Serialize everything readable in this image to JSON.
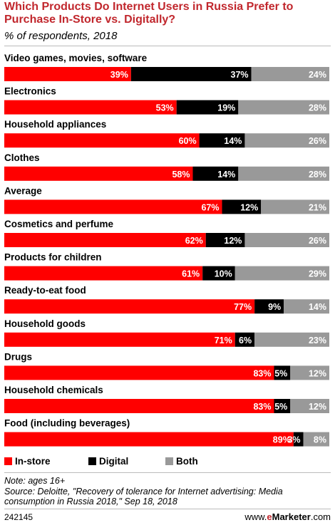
{
  "header": {
    "title": "Which Products Do Internet Users in Russia Prefer to Purchase In-Store vs. Digitally?",
    "subtitle": "% of respondents, 2018"
  },
  "colors": {
    "in_store": "#FF0000",
    "digital": "#000000",
    "both": "#999999"
  },
  "chart_data": {
    "type": "bar",
    "stacked": true,
    "orientation": "horizontal",
    "categories": [
      "Video games, movies, software",
      "Electronics",
      "Household appliances",
      "Clothes",
      "Average",
      "Cosmetics and perfume",
      "Products for children",
      "Ready-to-eat food",
      "Household goods",
      "Drugs",
      "Household chemicals",
      "Food (including beverages)"
    ],
    "series": [
      {
        "name": "In-store",
        "values": [
          39,
          53,
          60,
          58,
          67,
          62,
          61,
          77,
          71,
          83,
          83,
          89
        ]
      },
      {
        "name": "Digital",
        "values": [
          37,
          19,
          14,
          14,
          12,
          12,
          10,
          9,
          6,
          5,
          5,
          3
        ]
      },
      {
        "name": "Both",
        "values": [
          24,
          28,
          26,
          28,
          21,
          26,
          29,
          14,
          23,
          12,
          12,
          8
        ]
      }
    ],
    "value_labels": [
      [
        "39%",
        "37%",
        "24%"
      ],
      [
        "53%",
        "19%",
        "28%"
      ],
      [
        "60%",
        "14%",
        "26%"
      ],
      [
        "58%",
        "14%",
        "28%"
      ],
      [
        "67%",
        "12%",
        "21%"
      ],
      [
        "62%",
        "12%",
        "26%"
      ],
      [
        "61%",
        "10%",
        "29%"
      ],
      [
        "77%",
        "9%",
        "14%"
      ],
      [
        "71%",
        "6%",
        "23%"
      ],
      [
        "83%",
        "5%",
        "12%"
      ],
      [
        "83%",
        "5%",
        "12%"
      ],
      [
        "89%",
        "3%",
        "8%"
      ]
    ],
    "legend": {
      "position": "bottom-left"
    }
  },
  "legend": {
    "in_store": "In-store",
    "digital": "Digital",
    "both": "Both"
  },
  "notes": {
    "note": "Note: ages 16+",
    "source": "Source: Deloitte, \"Recovery of tolerance for Internet advertising: Media consumption in Russia 2018,\" Sep 18, 2018"
  },
  "footer": {
    "id": "242145",
    "brand_prefix": "www.",
    "brand_e": "e",
    "brand_rest": "Marketer",
    "brand_suffix": ".com"
  }
}
